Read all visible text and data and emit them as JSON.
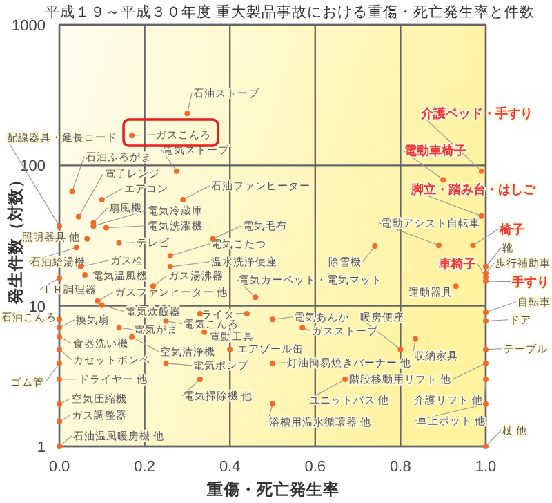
{
  "chart_data": {
    "type": "scatter",
    "title": "平成１９～平成３０年度 重大製品事故における重傷・死亡発生率と件数",
    "xlabel": "重傷・死亡発生率",
    "ylabel": "発生件数（対数）",
    "log": "y",
    "grid": true,
    "marker": "circle",
    "color": "#f26b2a",
    "xlim": [
      0,
      1
    ],
    "ylim": [
      1,
      1000
    ],
    "xticks": [
      {
        "value": 0,
        "label": "0.0"
      },
      {
        "value": 0.2,
        "label": "0.2"
      },
      {
        "value": 0.4,
        "label": "0.4"
      },
      {
        "value": 0.6,
        "label": "0.6"
      },
      {
        "value": 0.8,
        "label": "0.8"
      },
      {
        "value": 1,
        "label": "1.0"
      }
    ],
    "yticks": [
      1,
      10,
      100,
      1000
    ],
    "x": [
      0.3,
      0.17,
      0.275,
      0.99,
      0.9,
      0.0,
      0.03,
      0.045,
      0.1,
      0.08,
      0.08,
      0.11,
      0.14,
      0.065,
      0.04,
      0.05,
      0.06,
      0.29,
      0.36,
      0.26,
      0.26,
      0.22,
      0.09,
      0.0,
      0.46,
      0.74,
      0.89,
      0.97,
      0.99,
      1.0,
      1.0,
      1.0,
      1.0,
      0.93,
      1.0,
      1.0,
      0.5,
      0.57,
      0.8,
      0.835,
      1.0,
      1.0,
      1.0,
      1.0,
      1.0,
      0.5,
      0.67,
      0.5,
      0.4,
      0.25,
      0.33,
      0.17,
      0.14,
      0.1,
      0.0,
      0.0,
      0.0,
      0.0,
      0.0,
      0.0,
      0.0,
      0.0,
      0.0,
      0.34,
      0.33,
      0.25,
      0.44
    ],
    "values": [
      234,
      163,
      91,
      91,
      79,
      37,
      65,
      43,
      57,
      39,
      37,
      36,
      28,
      30,
      26,
      19,
      16.6,
      57,
      30,
      22.7,
      19,
      13.8,
      10.8,
      15.8,
      11.5,
      26.7,
      27,
      27,
      43.6,
      19,
      17,
      16,
      15,
      13.8,
      9.0,
      7.8,
      8.0,
      7.0,
      4.9,
      5.8,
      4.9,
      3.9,
      3.0,
      2.0,
      1.0,
      3.9,
      3.0,
      2.0,
      4.9,
      3.9,
      3.0,
      6.0,
      7.0,
      10.1,
      7.0,
      8.0,
      6.0,
      4.9,
      3.0,
      3.9,
      2.0,
      1.5,
      1.0,
      6.5,
      8.8,
      7.8,
      8.8
    ],
    "annotations": [
      {
        "text": "石油ストーブ",
        "x": 0.3,
        "y": 234
      },
      {
        "text": "ガスこんろ",
        "x": 0.17,
        "y": 163
      },
      {
        "text": "電気ストーブ",
        "x": 0.275,
        "y": 91
      },
      {
        "text": "介護ベッド・手すり",
        "x": 0.99,
        "y": 91
      },
      {
        "text": "電動車椅子",
        "x": 0.9,
        "y": 79
      },
      {
        "text": "配線器具・延長コード",
        "x": 0.0,
        "y": 37
      },
      {
        "text": "石油ふろがま",
        "x": 0.03,
        "y": 65
      },
      {
        "text": "電子レンジ",
        "x": 0.045,
        "y": 43
      },
      {
        "text": "エアコン",
        "x": 0.1,
        "y": 57
      },
      {
        "text": "扇風機",
        "x": 0.08,
        "y": 39
      },
      {
        "text": "電気冷蔵庫",
        "x": 0.08,
        "y": 37
      },
      {
        "text": "電気洗濯機",
        "x": 0.11,
        "y": 36
      },
      {
        "text": "テレビ",
        "x": 0.14,
        "y": 28
      },
      {
        "text": "照明器具 他",
        "x": 0.065,
        "y": 30
      },
      {
        "text": "石油給湯機",
        "x": 0.04,
        "y": 26
      },
      {
        "text": "ガス栓",
        "x": 0.05,
        "y": 19
      },
      {
        "text": "電気温風機",
        "x": 0.06,
        "y": 16.6
      },
      {
        "text": "石油ファンヒーター",
        "x": 0.29,
        "y": 57
      },
      {
        "text": "電気毛布",
        "x": 0.36,
        "y": 30
      },
      {
        "text": "電気こたつ",
        "x": 0.26,
        "y": 22.7
      },
      {
        "text": "温水洗浄便座",
        "x": 0.26,
        "y": 19
      },
      {
        "text": "ガス湯沸器",
        "x": 0.22,
        "y": 13.8
      },
      {
        "text": "ガスファンヒーター 他",
        "x": 0.09,
        "y": 10.8
      },
      {
        "text": "ＩＨ調理器",
        "x": 0.0,
        "y": 15.8
      },
      {
        "text": "電気カーペット・電気マット",
        "x": 0.46,
        "y": 11.5
      },
      {
        "text": "除雪機",
        "x": 0.74,
        "y": 26.7
      },
      {
        "text": "電動アシスト自転車",
        "x": 0.89,
        "y": 27
      },
      {
        "text": "椅子",
        "x": 0.97,
        "y": 27
      },
      {
        "text": "脚立・踏み台・はしご",
        "x": 0.99,
        "y": 43.6
      },
      {
        "text": "靴",
        "x": 1.0,
        "y": 19
      },
      {
        "text": "歩行補助車",
        "x": 1.0,
        "y": 17
      },
      {
        "text": "車椅子",
        "x": 1.0,
        "y": 16
      },
      {
        "text": "手すり",
        "x": 1.0,
        "y": 15
      },
      {
        "text": "運動器具",
        "x": 0.93,
        "y": 13.8
      },
      {
        "text": "自転車",
        "x": 1.0,
        "y": 9.0
      },
      {
        "text": "ドア",
        "x": 1.0,
        "y": 7.8
      },
      {
        "text": "電気あんか",
        "x": 0.5,
        "y": 8.0
      },
      {
        "text": "ガスストーブ",
        "x": 0.57,
        "y": 7.0
      },
      {
        "text": "暖房便座",
        "x": 0.8,
        "y": 4.9
      },
      {
        "text": "収納家具",
        "x": 0.835,
        "y": 5.8
      },
      {
        "text": "テーブル",
        "x": 1.0,
        "y": 4.9
      },
      {
        "text": "階段移動用リフト 他",
        "x": 1.0,
        "y": 3.9
      },
      {
        "text": "介護リフト 他",
        "x": 1.0,
        "y": 3.0
      },
      {
        "text": "卓上ポット 他",
        "x": 1.0,
        "y": 2.0
      },
      {
        "text": "杖 他",
        "x": 1.0,
        "y": 1.0
      },
      {
        "text": "灯油簡易焼きバーナー 他",
        "x": 0.5,
        "y": 3.9
      },
      {
        "text": "ユニットバス 他",
        "x": 0.67,
        "y": 3.0
      },
      {
        "text": "浴槽用温水循環器 他",
        "x": 0.5,
        "y": 2.0
      },
      {
        "text": "エアゾール缶",
        "x": 0.4,
        "y": 4.9
      },
      {
        "text": "電気ポンプ",
        "x": 0.25,
        "y": 3.9
      },
      {
        "text": "電気掃除機 他",
        "x": 0.33,
        "y": 3.0
      },
      {
        "text": "空気清浄機",
        "x": 0.17,
        "y": 6.0
      },
      {
        "text": "電気がま",
        "x": 0.14,
        "y": 7.0
      },
      {
        "text": "電気炊飯器",
        "x": 0.1,
        "y": 10.1
      },
      {
        "text": "換気扇",
        "x": 0.0,
        "y": 7.0
      },
      {
        "text": "石油こんろ",
        "x": 0.0,
        "y": 8.0
      },
      {
        "text": "食器洗い機",
        "x": 0.0,
        "y": 6.0
      },
      {
        "text": "カセットボンベ",
        "x": 0.0,
        "y": 4.9
      },
      {
        "text": "ドライヤー 他",
        "x": 0.0,
        "y": 3.0
      },
      {
        "text": "ゴム管",
        "x": 0.0,
        "y": 3.9
      },
      {
        "text": "空気圧縮機",
        "x": 0.0,
        "y": 2.0
      },
      {
        "text": "ガス調整器",
        "x": 0.0,
        "y": 1.5
      },
      {
        "text": "石油温風暖房機 他",
        "x": 0.0,
        "y": 1.0
      },
      {
        "text": "電動工具",
        "x": 0.34,
        "y": 6.5
      },
      {
        "text": "ライター",
        "x": 0.33,
        "y": 8.8
      },
      {
        "text": "電気こんろ",
        "x": 0.25,
        "y": 7.8
      }
    ]
  }
}
